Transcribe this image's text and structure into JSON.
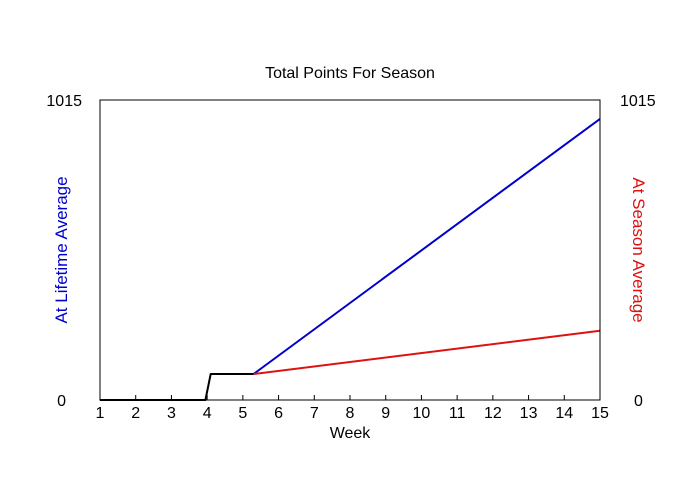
{
  "chart_data": {
    "type": "line",
    "title": "Total Points For Season",
    "xlabel": "Week",
    "ylabel_left": "At Lifetime Average",
    "ylabel_right": "At Season Average",
    "xlim": [
      1,
      15
    ],
    "ylim": [
      0,
      1015
    ],
    "x_ticks": [
      1,
      2,
      3,
      4,
      5,
      6,
      7,
      8,
      9,
      10,
      11,
      12,
      13,
      14,
      15
    ],
    "y_tick_labels_left": [
      "0",
      "1015"
    ],
    "y_tick_labels_right": [
      "0",
      "1015"
    ],
    "grid": false,
    "colors": {
      "lifetime": "#0000cc",
      "season": "#dd1111",
      "actual": "#000000",
      "ylabel_left": "#0000cc",
      "ylabel_right": "#dd1111"
    },
    "series": [
      {
        "key": "actual",
        "x": [
          1,
          3.95,
          4.1,
          5.3
        ],
        "y": [
          0,
          0,
          88,
          88
        ]
      },
      {
        "key": "lifetime",
        "x": [
          5.3,
          15
        ],
        "y": [
          88,
          951
        ]
      },
      {
        "key": "season",
        "x": [
          5.3,
          15
        ],
        "y": [
          88,
          234
        ]
      }
    ]
  }
}
